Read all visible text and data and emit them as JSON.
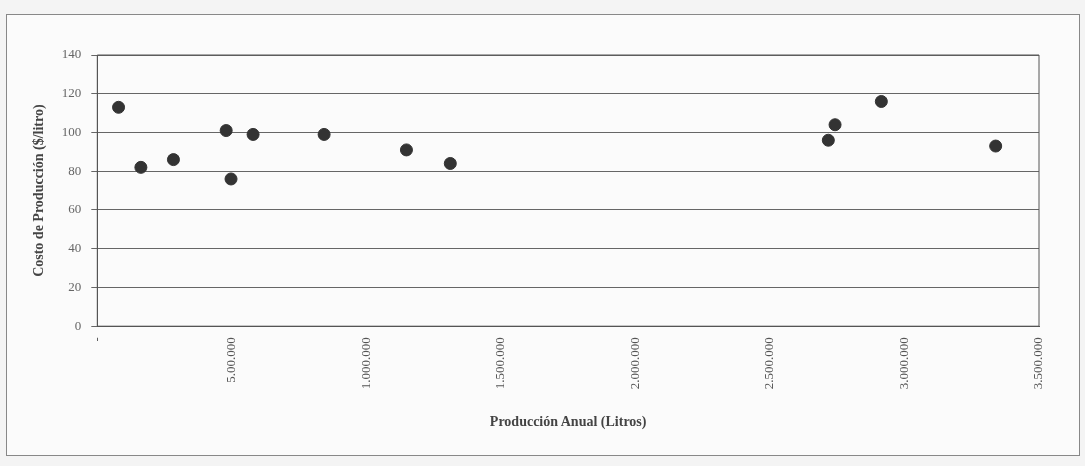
{
  "chart_data": {
    "type": "scatter",
    "xlabel": "Producción Anual (Litros)",
    "ylabel": "Costo de Producción ($/litro)",
    "series": [
      {
        "color": "#333333",
        "x": [
          79000,
          162000,
          283000,
          479000,
          497000,
          579000,
          843000,
          1149000,
          1312000,
          2717000,
          2742000,
          2914000,
          3339000
        ],
        "values": [
          113,
          82,
          86,
          101,
          76,
          99,
          99,
          91,
          84,
          96,
          104,
          116,
          93
        ]
      }
    ],
    "xlim": [
      0,
      3500000
    ],
    "xticks": [
      {
        "value": 0,
        "label": "-"
      },
      {
        "value": 500000,
        "label": "5.00.000"
      },
      {
        "value": 1000000,
        "label": "1.000.000"
      },
      {
        "value": 1500000,
        "label": "1.500.000"
      },
      {
        "value": 2000000,
        "label": "2.000.000"
      },
      {
        "value": 2500000,
        "label": "2.500.000"
      },
      {
        "value": 3000000,
        "label": "3.000.000"
      },
      {
        "value": 3500000,
        "label": "3.500.000"
      }
    ],
    "ylim": [
      0,
      140
    ],
    "yticks": [
      0,
      20,
      40,
      60,
      80,
      100,
      120,
      140
    ],
    "grid": "y",
    "marker": "circle"
  }
}
